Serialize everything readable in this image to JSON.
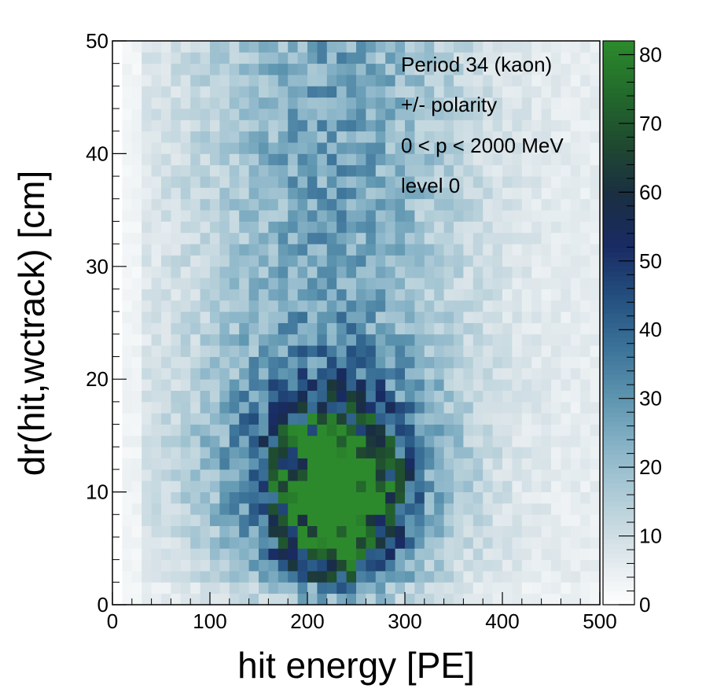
{
  "chart_data": {
    "type": "heatmap",
    "xlabel": "hit energy [PE]",
    "ylabel": "dr(hit,wctrack) [cm]",
    "xlim": [
      0,
      500
    ],
    "ylim": [
      0,
      50
    ],
    "x_ticks": [
      "0",
      "100",
      "200",
      "300",
      "400",
      "500"
    ],
    "y_ticks": [
      "0",
      "10",
      "20",
      "30",
      "40",
      "50"
    ],
    "colorbar": {
      "range": [
        0,
        82
      ],
      "ticks": [
        "0",
        "10",
        "20",
        "30",
        "40",
        "50",
        "60",
        "70",
        "80"
      ],
      "colors": [
        "#ffffff",
        "#dde6ea",
        "#b5cfd9",
        "#8cb6c9",
        "#5f96b0",
        "#3c7399",
        "#24507f",
        "#192b63",
        "#1a2e42",
        "#1f4a30",
        "#236b2c",
        "#2c8a2c"
      ]
    },
    "bins": {
      "nx": 50,
      "ny": 50,
      "x_width": 10,
      "y_width": 1
    },
    "density_model": {
      "description": "peak component near (230 PE, 9 cm)",
      "peak": {
        "x": 230,
        "y": 9,
        "value": 80,
        "sx": 38,
        "sy": 4.5
      },
      "halo": {
        "x": 220,
        "y": 12,
        "value": 35,
        "sx": 80,
        "sy": 7
      },
      "plume": {
        "x": 225,
        "y": 40,
        "value": 22,
        "sx": 95,
        "sy": 25
      },
      "background": {
        "value": 5
      }
    },
    "annotations": [
      "Period 34 (kaon)",
      "+/- polarity",
      "0 < p < 2000 MeV",
      "level 0"
    ]
  }
}
